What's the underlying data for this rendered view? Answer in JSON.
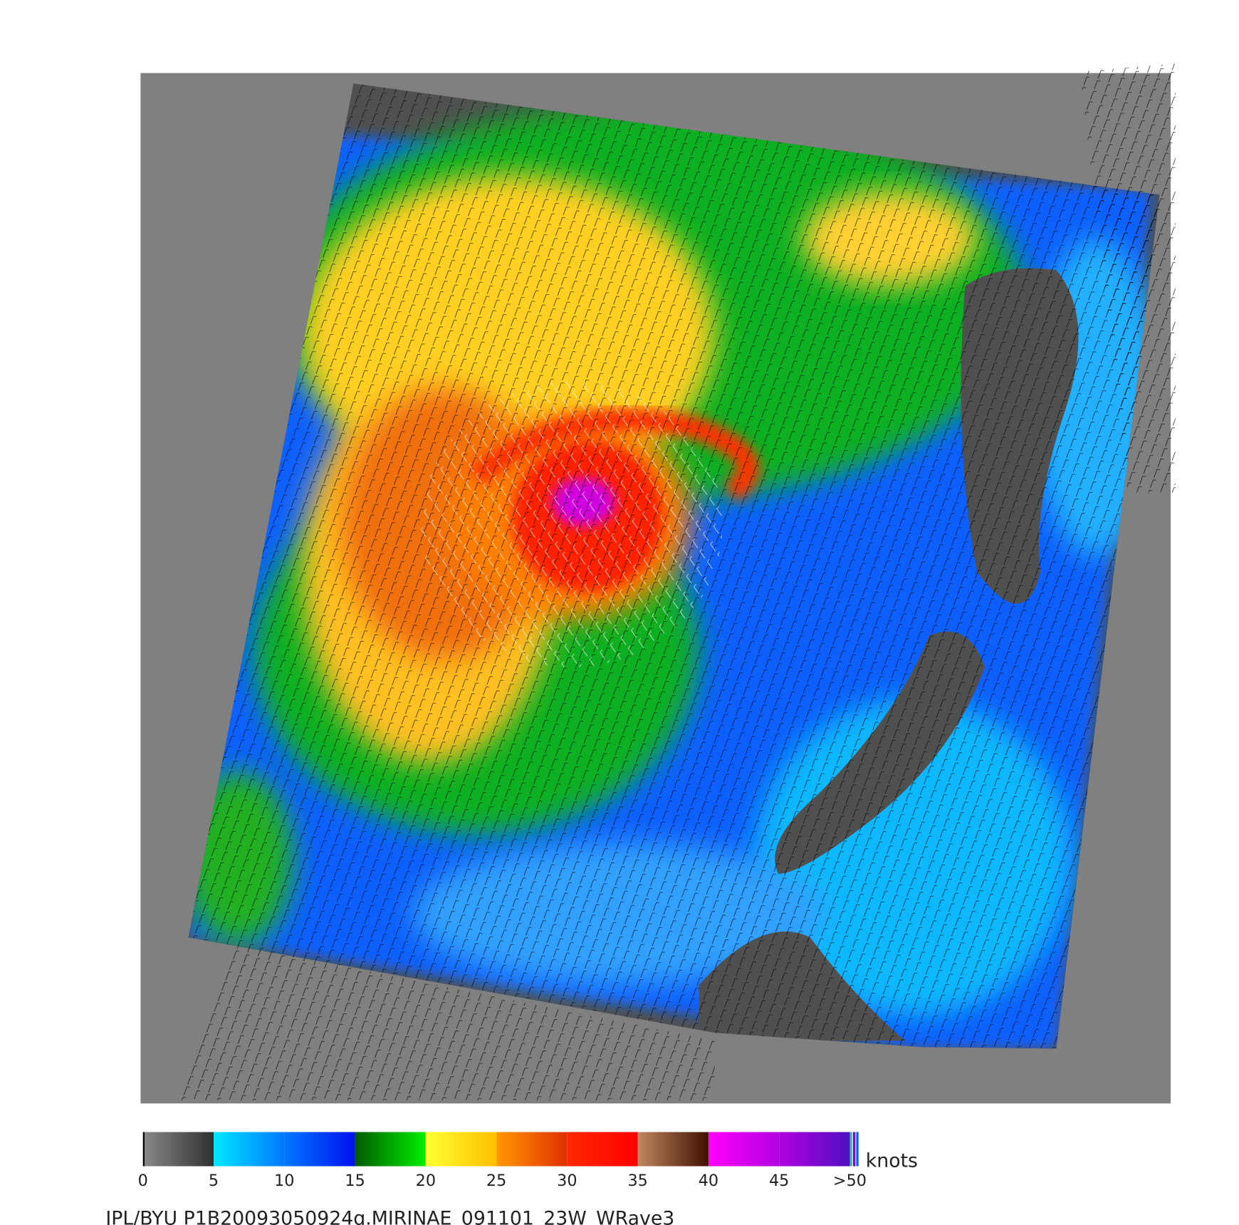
{
  "colorbar": {
    "unit": "knots",
    "ticks": [
      0,
      5,
      10,
      15,
      20,
      25,
      30,
      35,
      40,
      45,
      {
        "value": 50,
        "label": ">50"
      }
    ],
    "colors": [
      [
        "#8a8a8a",
        "#303030"
      ],
      [
        "#00e8ff",
        "#0078ff"
      ],
      [
        "#0078ff",
        "#0010f0"
      ],
      [
        "#005a00",
        "#00f000"
      ],
      [
        "#ffff30",
        "#ffc000"
      ],
      [
        "#ff9800",
        "#e03000"
      ],
      [
        "#ff2800",
        "#ff0000"
      ],
      [
        "#c08860",
        "#401000"
      ],
      [
        "#ff00ff",
        "#b000e0"
      ],
      [
        "#b000e0",
        "#5010c0"
      ]
    ]
  },
  "caption": "JPL/BYU  P1B20093050924q.MIRINAE_091101_23W_WRave3"
}
